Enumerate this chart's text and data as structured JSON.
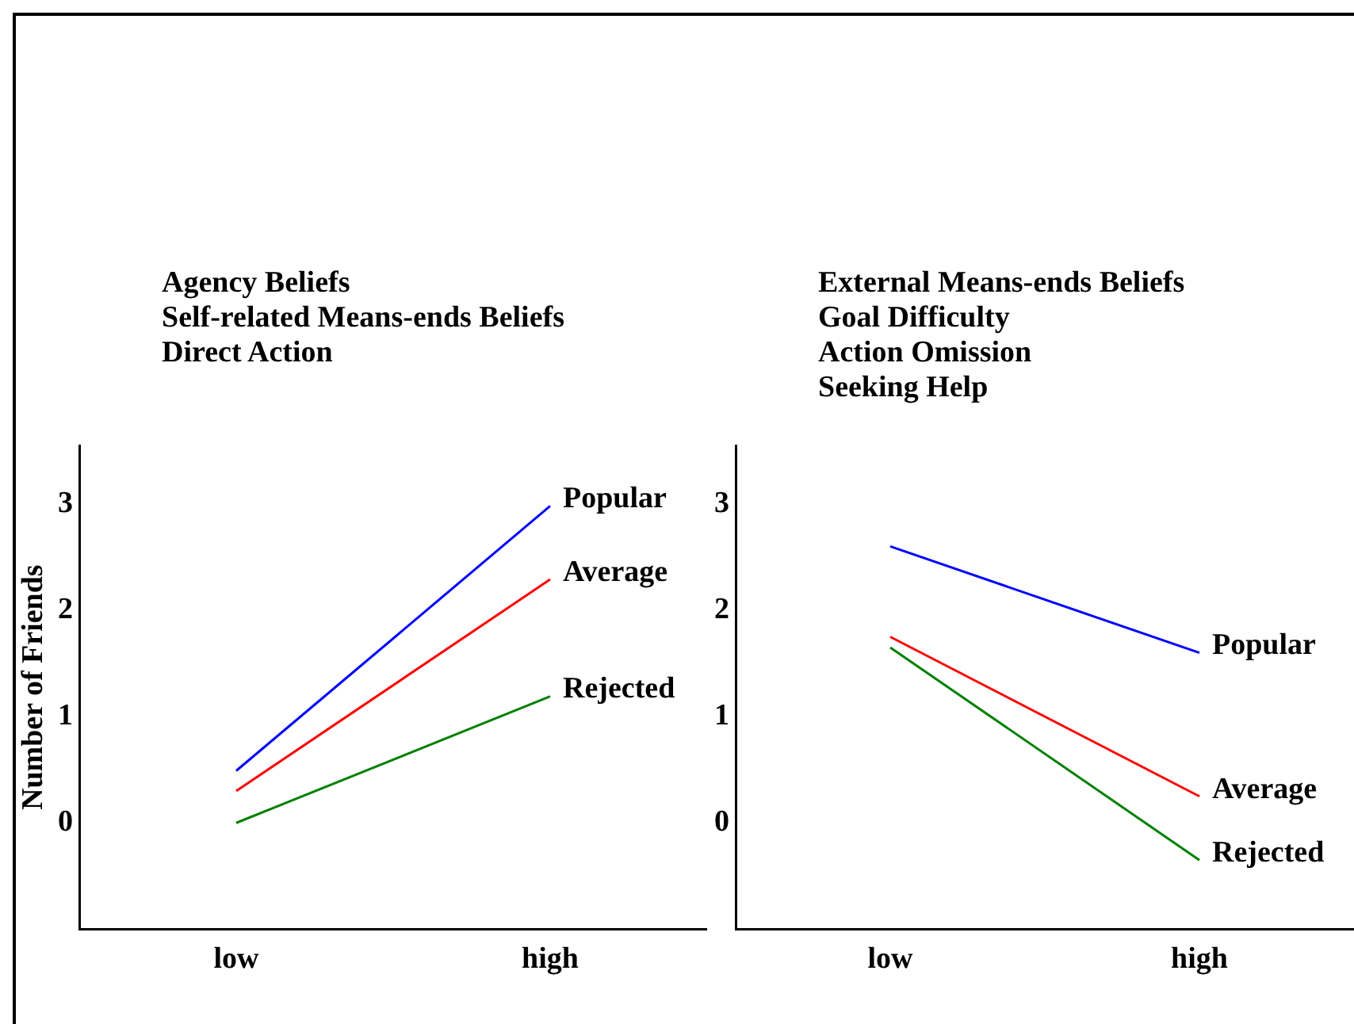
{
  "chart_data": [
    {
      "type": "line",
      "title": "Agency Beliefs\nSelf-related Means-ends Beliefs\nDirect Action",
      "ylabel": "Number of Friends",
      "categories": [
        "low",
        "high"
      ],
      "series": [
        {
          "name": "Popular",
          "color": "#0000ff",
          "values": [
            0.49,
            2.98
          ]
        },
        {
          "name": "Average",
          "color": "#ff0000",
          "values": [
            0.3,
            2.29
          ]
        },
        {
          "name": "Rejected",
          "color": "#008000",
          "values": [
            0.0,
            1.19
          ]
        }
      ],
      "ylim": [
        -1,
        3.55
      ],
      "yticks": [
        0,
        1,
        2,
        3
      ],
      "grid": false,
      "legend": false,
      "marker": "none",
      "line_style": "solid"
    },
    {
      "type": "line",
      "title": "External Means-ends Beliefs\nGoal Difficulty\nAction Omission\nSeeking Help",
      "categories": [
        "low",
        "high"
      ],
      "series": [
        {
          "name": "Popular",
          "color": "#0000ff",
          "values": [
            2.6,
            1.6
          ]
        },
        {
          "name": "Average",
          "color": "#ff0000",
          "values": [
            1.75,
            0.25
          ]
        },
        {
          "name": "Rejected",
          "color": "#008000",
          "values": [
            1.65,
            -0.35
          ]
        }
      ],
      "ylim": [
        -1,
        3.55
      ],
      "yticks": [
        0,
        1,
        2,
        3
      ],
      "grid": false,
      "legend": false,
      "marker": "none",
      "line_style": "solid"
    }
  ]
}
